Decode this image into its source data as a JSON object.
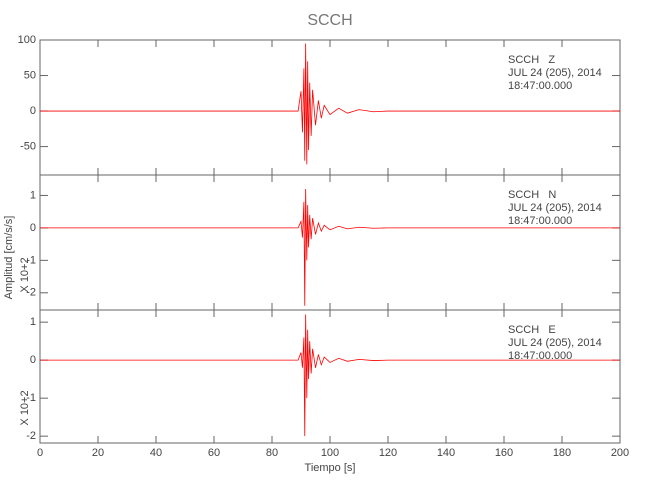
{
  "chart_data": [
    {
      "type": "line",
      "title": "SCCH",
      "annotation": [
        "SCCH   Z",
        "JUL 24 (205), 2014",
        "18:47:00.000"
      ],
      "x": [
        0,
        20,
        40,
        60,
        80,
        89,
        90,
        90.5,
        91,
        91.3,
        91.6,
        92,
        92.3,
        92.6,
        93,
        93.5,
        94,
        95,
        96,
        97,
        98,
        100,
        103,
        106,
        110,
        115,
        120,
        140,
        160,
        180,
        200
      ],
      "xlim": [
        0,
        200
      ],
      "series": [
        {
          "color": "#ff0000",
          "values": [
            0,
            0,
            0,
            0,
            0,
            0,
            28,
            -30,
            60,
            -70,
            95,
            -75,
            70,
            -55,
            40,
            -35,
            30,
            -20,
            15,
            -10,
            8,
            -5,
            4,
            -3,
            2,
            -1,
            0,
            0,
            0,
            0,
            0
          ]
        }
      ],
      "ylim": [
        -90,
        100
      ],
      "yticks": [
        -50,
        0,
        50,
        100
      ]
    },
    {
      "type": "line",
      "annotation": [
        "SCCH   N",
        "JUL 24 (205), 2014",
        "18:47:00.000"
      ],
      "ylabel": "Amplitud [cm/s/s]",
      "scale_note": "X 10+2",
      "x": [
        0,
        20,
        40,
        60,
        80,
        89,
        90,
        90.5,
        91,
        91.3,
        91.6,
        92,
        92.3,
        92.6,
        93,
        93.5,
        94,
        95,
        96,
        97,
        98,
        100,
        103,
        106,
        110,
        115,
        120,
        140,
        160,
        180,
        200
      ],
      "xlim": [
        0,
        200
      ],
      "series": [
        {
          "color": "#ff0000",
          "values": [
            0,
            0,
            0,
            0,
            0,
            0,
            0.2,
            -0.3,
            0.8,
            -2.4,
            1.2,
            -1.0,
            0.7,
            -0.6,
            0.4,
            -0.35,
            0.3,
            -0.2,
            0.15,
            -0.1,
            0.08,
            -0.06,
            0.05,
            -0.03,
            0.02,
            -0.01,
            0,
            0,
            0,
            0,
            0
          ]
        }
      ],
      "ylim": [
        -2.53,
        1.63
      ],
      "yticks": [
        -2,
        -1,
        0,
        1
      ]
    },
    {
      "type": "line",
      "annotation": [
        "SCCH   E",
        "JUL 24 (205), 2014",
        "18:47:00.000"
      ],
      "scale_note": "X 10+2",
      "xlabel": "Tiempo [s]",
      "x": [
        0,
        20,
        40,
        60,
        80,
        89,
        90,
        90.5,
        91,
        91.3,
        91.6,
        92,
        92.3,
        92.6,
        93,
        93.5,
        94,
        95,
        96,
        97,
        98,
        100,
        103,
        106,
        110,
        115,
        120,
        140,
        160,
        180,
        200
      ],
      "xlim": [
        0,
        200
      ],
      "xticks": [
        0,
        20,
        40,
        60,
        80,
        100,
        120,
        140,
        160,
        180,
        200
      ],
      "series": [
        {
          "color": "#ff0000",
          "values": [
            0,
            0,
            0,
            0,
            0,
            0,
            0.2,
            -0.2,
            0.6,
            -2.0,
            1.2,
            -1.0,
            0.8,
            -0.5,
            0.5,
            -0.35,
            0.3,
            -0.2,
            0.15,
            -0.12,
            0.08,
            -0.06,
            0.05,
            -0.03,
            0.02,
            -0.01,
            0,
            0,
            0,
            0,
            0
          ]
        }
      ],
      "ylim": [
        -2.18,
        1.32
      ],
      "yticks": [
        -2,
        -1,
        0,
        1
      ]
    }
  ]
}
